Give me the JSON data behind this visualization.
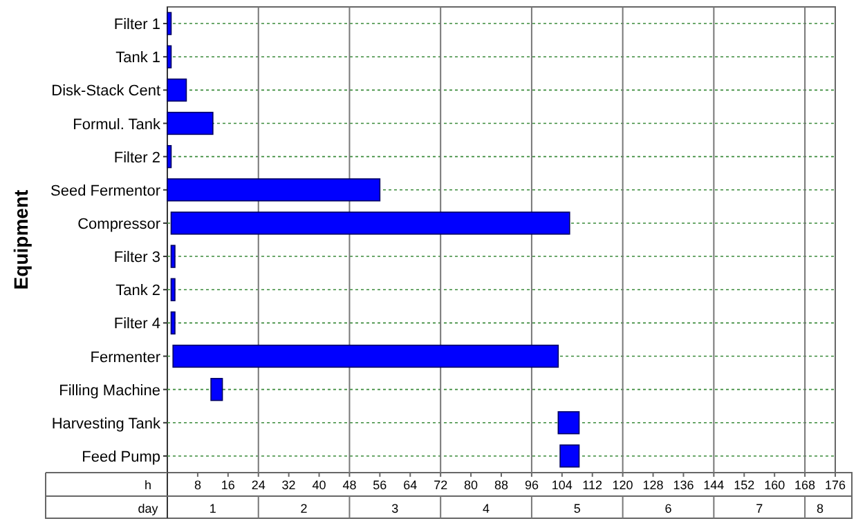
{
  "chart_data": {
    "type": "bar",
    "orientation": "horizontal",
    "ylabel": "Equipment",
    "xlabel": "h",
    "x2label": "day",
    "categories": [
      "Filter 1",
      "Tank 1",
      "Disk-Stack Cent",
      "Formul. Tank",
      "Filter 2",
      "Seed Fermentor",
      "Compressor",
      "Filter 3",
      "Tank 2",
      "Filter 4",
      "Fermenter",
      "Filling Machine",
      "Harvesting Tank",
      "Feed Pump"
    ],
    "base": [
      0,
      0,
      0,
      0,
      0,
      0,
      1,
      1,
      1,
      1,
      1.5,
      11.5,
      103,
      103.5
    ],
    "values": [
      1,
      1,
      5,
      12,
      1,
      56,
      105,
      1,
      1,
      1,
      101.5,
      3,
      5.5,
      5
    ],
    "color": "#0000ff",
    "xlim": [
      0,
      176
    ],
    "xticks": [
      8,
      16,
      24,
      32,
      40,
      48,
      56,
      64,
      72,
      80,
      88,
      96,
      104,
      112,
      120,
      128,
      136,
      144,
      152,
      160,
      168,
      176
    ],
    "annotations": [
      "1",
      "2",
      "3",
      "4",
      "5",
      "6",
      "7",
      "8"
    ],
    "grid": true
  }
}
